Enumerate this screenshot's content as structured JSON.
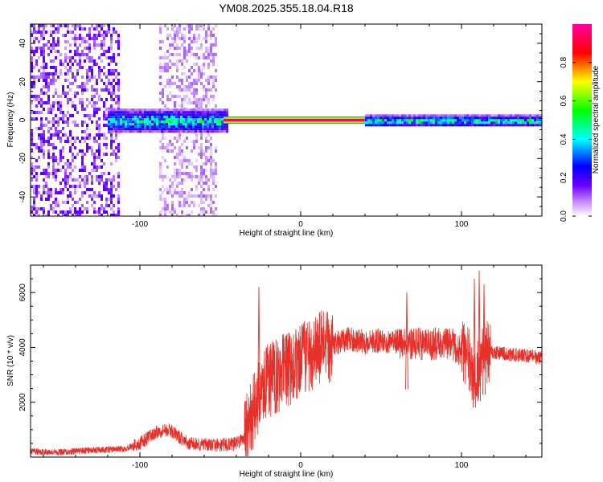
{
  "title": "YM08.2025.355.18.04.R18",
  "chart_data": [
    {
      "type": "heatmap",
      "name": "spectrogram",
      "xlabel": "Height of straight line (km)",
      "ylabel": "Frequency (Hz)",
      "xlim": [
        -168,
        150
      ],
      "ylim": [
        -50,
        50
      ],
      "xticks": [
        -100,
        0,
        100
      ],
      "yticks": [
        -40,
        -20,
        0,
        20,
        40
      ],
      "xtick_labels": [
        "-100",
        "0",
        "100"
      ],
      "ytick_labels": [
        "-40",
        "-20",
        "0",
        "20",
        "40"
      ],
      "colorbar": {
        "label": "Normalized spectral amplitude",
        "range": [
          0,
          1
        ],
        "ticks": [
          0.0,
          0.2,
          0.4,
          0.6,
          0.8
        ],
        "tick_labels": [
          "0.0",
          "0.2",
          "0.4",
          "0.6",
          "0.8"
        ],
        "colormap": [
          "#ffffff",
          "#6a00ff",
          "#0000ff",
          "#00ffff",
          "#00ff00",
          "#ffff00",
          "#ff0000",
          "#ff00a0"
        ]
      },
      "features": [
        {
          "kind": "noise",
          "x_range": [
            -168,
            -113
          ],
          "y_range": [
            -50,
            50
          ],
          "amplitude": 0.15
        },
        {
          "kind": "noise",
          "x_range": [
            -88,
            -52
          ],
          "y_range": [
            -50,
            50
          ],
          "amplitude": 0.08
        },
        {
          "kind": "band",
          "x_range": [
            -120,
            -45
          ],
          "center": 0,
          "half_width": 6,
          "amplitude": 0.45
        },
        {
          "kind": "line",
          "x_range": [
            -48,
            150
          ],
          "center": 0,
          "half_width": 1.5,
          "amplitude": 0.95
        },
        {
          "kind": "band",
          "x_range": [
            40,
            150
          ],
          "center": 0,
          "half_width": 3,
          "amplitude": 0.5
        }
      ]
    },
    {
      "type": "line",
      "name": "snr",
      "xlabel": "Height of straight line (km)",
      "ylabel": "SNR (10 * v/v)",
      "xlim": [
        -168,
        150
      ],
      "ylim": [
        0,
        7000
      ],
      "xticks": [
        -100,
        0,
        100
      ],
      "yticks": [
        2000,
        4000,
        6000
      ],
      "xtick_labels": [
        "-100",
        "0",
        "100"
      ],
      "ytick_labels": [
        "2000",
        "4000",
        "6000"
      ],
      "color": "#e8302a",
      "series": [
        {
          "name": "SNR",
          "x": [
            -168,
            -150,
            -130,
            -110,
            -100,
            -95,
            -90,
            -85,
            -80,
            -75,
            -70,
            -60,
            -50,
            -40,
            -35,
            -30,
            -28,
            -25,
            -20,
            -15,
            -10,
            -5,
            0,
            5,
            10,
            15,
            20,
            25,
            30,
            35,
            40,
            50,
            60,
            65,
            70,
            80,
            90,
            95,
            100,
            105,
            108,
            110,
            112,
            115,
            120,
            130,
            140,
            150
          ],
          "values": [
            200,
            180,
            250,
            300,
            500,
            700,
            900,
            1000,
            950,
            700,
            500,
            450,
            420,
            500,
            700,
            1500,
            2000,
            2400,
            2800,
            3000,
            3100,
            3300,
            3400,
            3800,
            3900,
            4000,
            4100,
            4200,
            4300,
            4250,
            4200,
            4250,
            4200,
            4100,
            4150,
            4100,
            4200,
            4100,
            3800,
            3500,
            3000,
            3200,
            3600,
            3900,
            3800,
            3750,
            3700,
            3600
          ]
        }
      ],
      "spikes": [
        {
          "x": -26,
          "value": 6200
        },
        {
          "x": 66,
          "value": 6000
        },
        {
          "x": 108,
          "value": 6500
        },
        {
          "x": 111,
          "value": 6800
        },
        {
          "x": 114,
          "value": 6300
        }
      ]
    }
  ]
}
